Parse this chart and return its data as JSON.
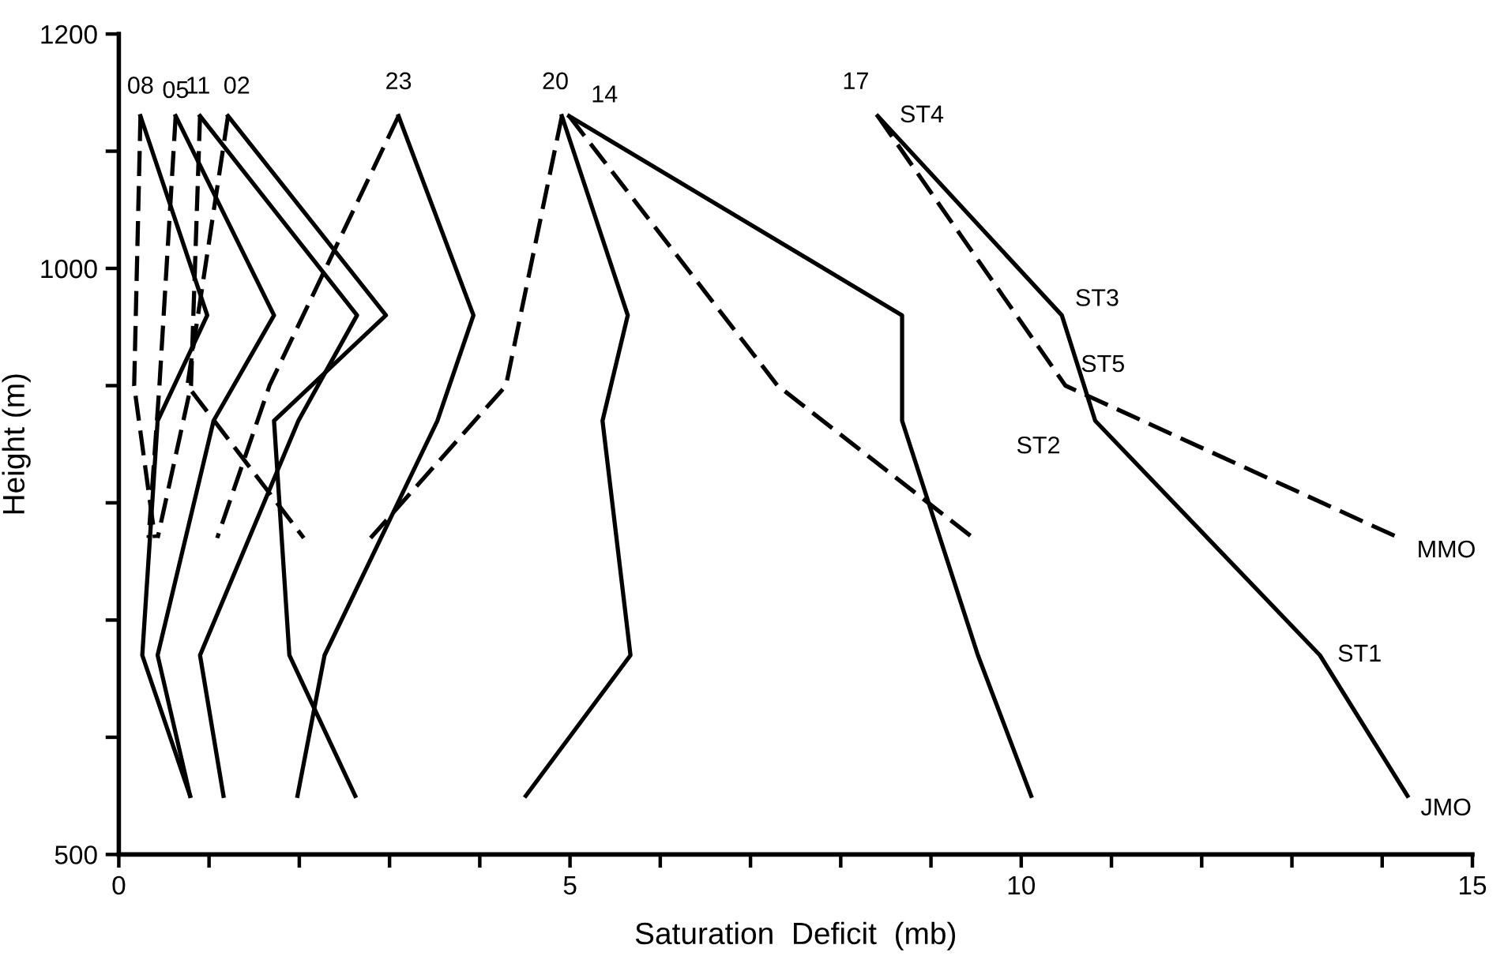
{
  "chart_data": {
    "type": "line",
    "xlabel": "Saturation  Deficit  (mb)",
    "ylabel": "Height (m)",
    "xlim": [
      0,
      15
    ],
    "ylim": [
      500,
      1200
    ],
    "xticks": [
      0,
      {
        "value": 1,
        "label": null
      },
      {
        "value": 2,
        "label": null
      },
      {
        "value": 3,
        "label": null
      },
      {
        "value": 4,
        "label": null
      },
      5,
      {
        "value": 6,
        "label": null
      },
      {
        "value": 7,
        "label": null
      },
      {
        "value": 8,
        "label": null
      },
      {
        "value": 9,
        "label": null
      },
      10,
      {
        "value": 11,
        "label": null
      },
      {
        "value": 12,
        "label": null
      },
      {
        "value": 13,
        "label": null
      },
      {
        "value": 14,
        "label": null
      },
      15
    ],
    "yticks": [
      500,
      {
        "value": 600,
        "label": null
      },
      {
        "value": 700,
        "label": null
      },
      {
        "value": 800,
        "label": null
      },
      {
        "value": 900,
        "label": null
      },
      1000,
      {
        "value": 1100,
        "label": null
      },
      1200
    ],
    "grid": false,
    "legend": false,
    "marker": "none",
    "series": [
      {
        "color": "#000000",
        "line_style": "solid",
        "x": [
          0.24,
          0.98,
          0.43,
          0.26,
          0.79
        ],
        "values": [
          1130,
          960,
          870,
          670,
          550
        ]
      },
      {
        "color": "#000000",
        "line_style": "solid",
        "x": [
          0.63,
          1.72,
          1.05,
          0.43,
          0.79
        ],
        "values": [
          1130,
          960,
          870,
          670,
          550
        ]
      },
      {
        "color": "#000000",
        "line_style": "solid",
        "x": [
          0.9,
          2.64,
          1.99,
          0.9,
          1.16
        ],
        "values": [
          1130,
          960,
          870,
          670,
          550
        ]
      },
      {
        "color": "#000000",
        "line_style": "solid",
        "x": [
          1.21,
          2.96,
          1.72,
          1.89,
          2.62
        ],
        "values": [
          1130,
          960,
          870,
          670,
          550
        ]
      },
      {
        "color": "#000000",
        "line_style": "solid",
        "x": [
          3.1,
          3.93,
          3.53,
          2.28,
          1.98
        ],
        "values": [
          1130,
          960,
          870,
          670,
          550
        ]
      },
      {
        "color": "#000000",
        "line_style": "solid",
        "x": [
          4.91,
          5.64,
          5.36,
          5.67,
          4.51
        ],
        "values": [
          1130,
          960,
          870,
          670,
          550
        ]
      },
      {
        "color": "#000000",
        "line_style": "solid",
        "x": [
          4.99,
          8.68,
          8.68,
          9.52,
          10.11
        ],
        "values": [
          1130,
          960,
          870,
          670,
          550
        ]
      },
      {
        "color": "#000000",
        "line_style": "solid",
        "x": [
          8.41,
          10.45,
          10.82,
          13.31,
          14.28
        ],
        "values": [
          1130,
          960,
          870,
          670,
          550
        ]
      },
      {
        "color": "#000000",
        "line_style": "dashed",
        "x": [
          0.24,
          0.17,
          0.4
        ],
        "values": [
          1130,
          900,
          770
        ]
      },
      {
        "color": "#000000",
        "line_style": "dashed",
        "x": [
          0.63,
          0.45,
          0.33
        ],
        "values": [
          1130,
          900,
          770
        ]
      },
      {
        "color": "#000000",
        "line_style": "dashed",
        "x": [
          0.9,
          0.8,
          0.43
        ],
        "values": [
          1130,
          900,
          770
        ]
      },
      {
        "color": "#000000",
        "line_style": "dashed",
        "x": [
          1.21,
          0.76,
          2.05
        ],
        "values": [
          1130,
          900,
          770
        ]
      },
      {
        "color": "#000000",
        "line_style": "dashed",
        "x": [
          3.1,
          1.67,
          1.09
        ],
        "values": [
          1130,
          900,
          770
        ]
      },
      {
        "color": "#000000",
        "line_style": "dashed",
        "x": [
          4.91,
          4.29,
          2.79
        ],
        "values": [
          1130,
          900,
          770
        ]
      },
      {
        "color": "#000000",
        "line_style": "dashed",
        "x": [
          4.99,
          7.3,
          9.47
        ],
        "values": [
          1130,
          900,
          770
        ]
      },
      {
        "color": "#000000",
        "line_style": "dashed",
        "x": [
          8.41,
          10.49,
          14.19
        ],
        "values": [
          1130,
          900,
          770
        ]
      }
    ],
    "annotations": [
      {
        "text": "08",
        "x": 0.24,
        "y": 1130
      },
      {
        "text": "05",
        "x": 0.63,
        "y": 1130
      },
      {
        "text": "11",
        "x": 0.9,
        "y": 1130
      },
      {
        "text": "02",
        "x": 1.21,
        "y": 1130
      },
      {
        "text": "23",
        "x": 3.1,
        "y": 1130
      },
      {
        "text": "20",
        "x": 4.91,
        "y": 1130
      },
      {
        "text": "14",
        "x": 4.99,
        "y": 1130
      },
      {
        "text": "17",
        "x": 8.41,
        "y": 1130
      },
      {
        "text": "ST4",
        "x": 8.41,
        "y": 1130
      },
      {
        "text": "ST3",
        "x": 10.45,
        "y": 960
      },
      {
        "text": "ST5",
        "x": 10.49,
        "y": 900
      },
      {
        "text": "ST2",
        "x": 10.82,
        "y": 870
      },
      {
        "text": "MMO",
        "x": 14.19,
        "y": 770
      },
      {
        "text": "ST1",
        "x": 13.31,
        "y": 670
      },
      {
        "text": "JMO",
        "x": 14.28,
        "y": 550
      }
    ]
  }
}
